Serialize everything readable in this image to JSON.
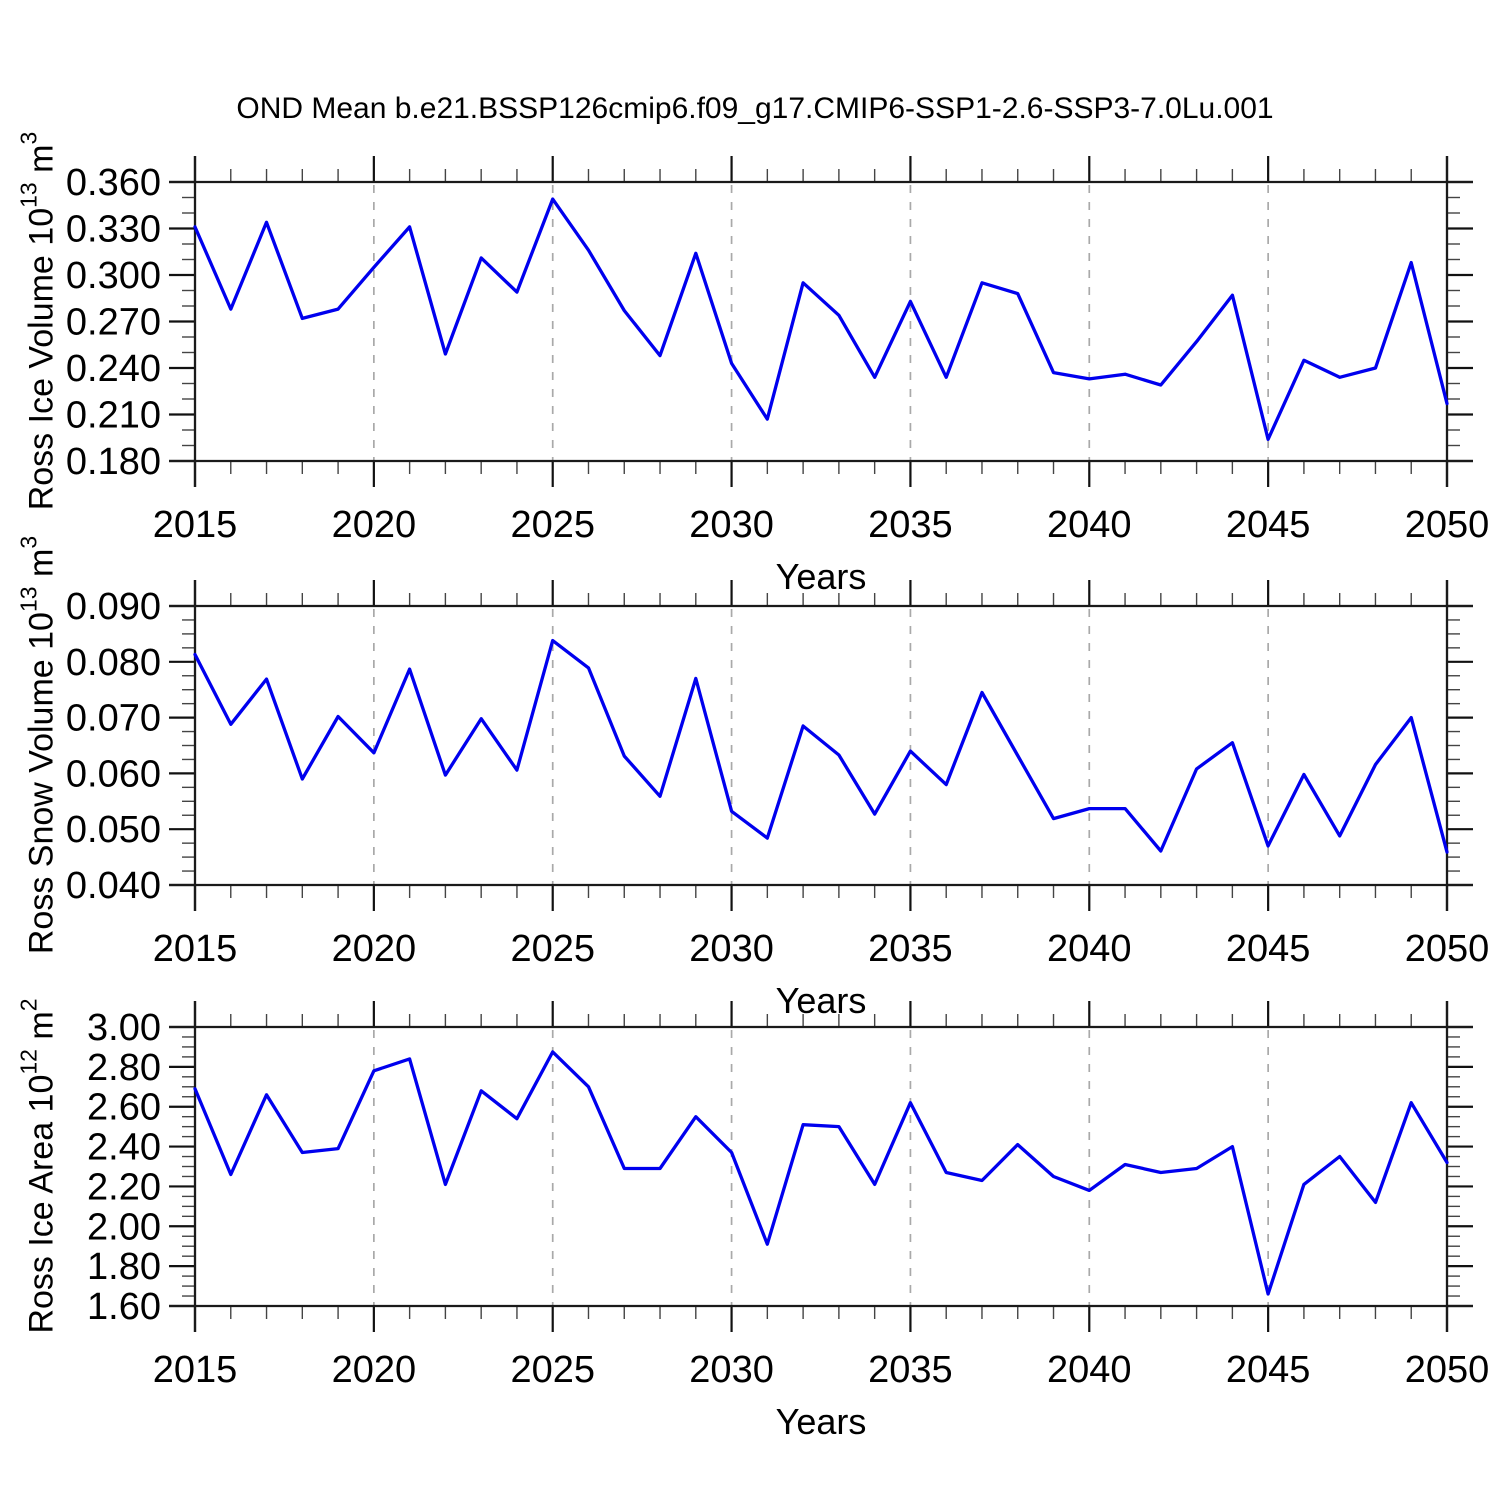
{
  "page_title": "OND Mean b.e21.BSSP126cmip6.f09_g17.CMIP6-SSP1-2.6-SSP3-7.0Lu.001",
  "line_color": "#0000ee",
  "grid_color": "#a9a9a9",
  "axis_color": "#1a1a1a",
  "x_axis": {
    "label": "Years",
    "years": [
      2015,
      2016,
      2017,
      2018,
      2019,
      2020,
      2021,
      2022,
      2023,
      2024,
      2025,
      2026,
      2027,
      2028,
      2029,
      2030,
      2031,
      2032,
      2033,
      2034,
      2035,
      2036,
      2037,
      2038,
      2039,
      2040,
      2041,
      2042,
      2043,
      2044,
      2045,
      2046,
      2047,
      2048,
      2049,
      2050
    ],
    "major_tick_labels": [
      "2015",
      "2020",
      "2025",
      "2030",
      "2035",
      "2040",
      "2045",
      "2050"
    ],
    "gridline_years": [
      2020,
      2025,
      2030,
      2035,
      2040,
      2045
    ]
  },
  "chart_data": [
    {
      "type": "line",
      "title": "",
      "xlabel": "Years",
      "ylabel": "Ross Ice Volume 10^13 m^3",
      "ylabel_parts": {
        "text": "Ross Ice Volume 10",
        "exp": "13",
        "unit": " m",
        "unit_exp": "3"
      },
      "ylim": [
        0.18,
        0.36
      ],
      "ytick_step": 0.03,
      "yminor_step": 0.01,
      "ytick_decimals": 3,
      "ytick_labels": [
        "0.180",
        "0.210",
        "0.240",
        "0.270",
        "0.300",
        "0.330",
        "0.360"
      ],
      "grid": "vertical-dashed-5yr",
      "legend": "none",
      "values": [
        0.331,
        0.278,
        0.334,
        0.272,
        0.278,
        0.305,
        0.331,
        0.249,
        0.311,
        0.289,
        0.349,
        0.316,
        0.277,
        0.248,
        0.314,
        0.243,
        0.207,
        0.295,
        0.274,
        0.234,
        0.283,
        0.234,
        0.295,
        0.288,
        0.237,
        0.233,
        0.236,
        0.229,
        0.257,
        0.287,
        0.194,
        0.245,
        0.234,
        0.24,
        0.308,
        0.217
      ]
    },
    {
      "type": "line",
      "title": "",
      "xlabel": "Years",
      "ylabel": "Ross Snow Volume 10^13 m^3",
      "ylabel_parts": {
        "text": "Ross Snow Volume 10",
        "exp": "13",
        "unit": " m",
        "unit_exp": "3"
      },
      "ylim": [
        0.04,
        0.09
      ],
      "ytick_step": 0.01,
      "yminor_step": 0.0025,
      "ytick_decimals": 3,
      "ytick_labels": [
        "0.040",
        "0.050",
        "0.060",
        "0.070",
        "0.080",
        "0.090"
      ],
      "grid": "vertical-dashed-5yr",
      "legend": "none",
      "values": [
        0.0813,
        0.0688,
        0.0769,
        0.059,
        0.0702,
        0.0637,
        0.0787,
        0.0597,
        0.0698,
        0.0606,
        0.0838,
        0.0789,
        0.0631,
        0.0559,
        0.077,
        0.0532,
        0.0484,
        0.0685,
        0.0633,
        0.0527,
        0.064,
        0.058,
        0.0745,
        0.0632,
        0.0519,
        0.0537,
        0.0537,
        0.0461,
        0.0608,
        0.0655,
        0.047,
        0.0598,
        0.0488,
        0.0616,
        0.07,
        0.0459
      ]
    },
    {
      "type": "line",
      "title": "",
      "xlabel": "Years",
      "ylabel": "Ross Ice Area 10^12 m^2",
      "ylabel_parts": {
        "text": "Ross Ice Area 10",
        "exp": "12",
        "unit": " m",
        "unit_exp": "2"
      },
      "ylim": [
        1.6,
        3.0
      ],
      "ytick_step": 0.2,
      "yminor_step": 0.05,
      "ytick_decimals": 2,
      "ytick_labels": [
        "1.60",
        "1.80",
        "2.00",
        "2.20",
        "2.40",
        "2.60",
        "2.80",
        "3.00"
      ],
      "grid": "vertical-dashed-5yr",
      "legend": "none",
      "values": [
        2.69,
        2.26,
        2.66,
        2.37,
        2.39,
        2.78,
        2.84,
        2.21,
        2.68,
        2.54,
        2.875,
        2.7,
        2.29,
        2.29,
        2.55,
        2.37,
        1.91,
        2.51,
        2.5,
        2.21,
        2.62,
        2.27,
        2.23,
        2.41,
        2.25,
        2.18,
        2.31,
        2.27,
        2.29,
        2.4,
        1.66,
        2.21,
        2.35,
        2.12,
        2.62,
        2.32
      ]
    }
  ]
}
